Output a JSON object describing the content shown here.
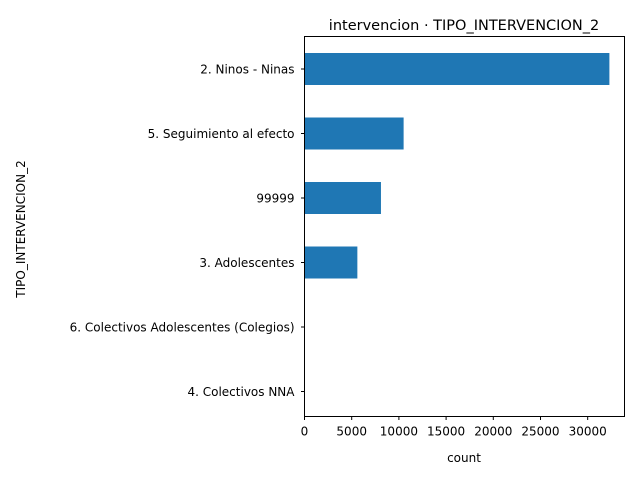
{
  "chart_data": {
    "type": "bar",
    "orientation": "horizontal",
    "title": "intervencion · TIPO_INTERVENCION_2",
    "xlabel": "count",
    "ylabel": "TIPO_INTERVENCION_2",
    "categories": [
      "2. Ninos - Ninas",
      "5. Seguimiento al efecto",
      "99999",
      "3. Adolescentes",
      "6. Colectivos Adolescentes (Colegios)",
      "4. Colectivos NNA"
    ],
    "values": [
      32300,
      10500,
      8100,
      5600,
      10,
      5
    ],
    "xlim": [
      0,
      33900
    ],
    "xticks": [
      "0",
      "5000",
      "10000",
      "15000",
      "20000",
      "25000",
      "30000"
    ],
    "grid": false,
    "legend": "none",
    "bar_color": "#1f77b4"
  }
}
